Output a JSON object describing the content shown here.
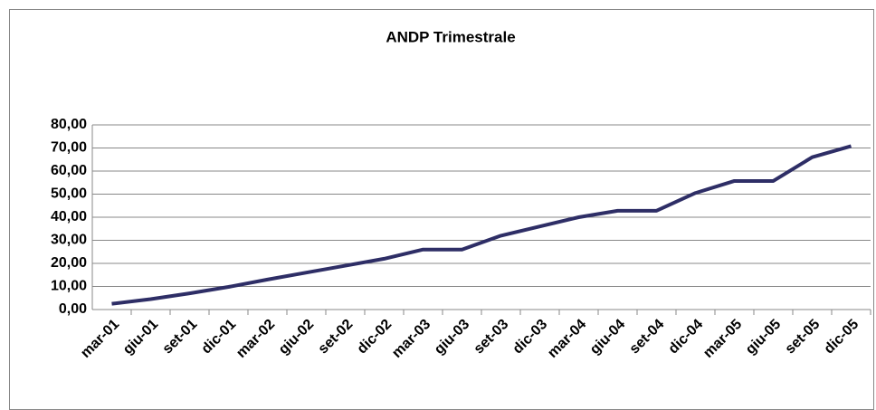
{
  "chart_data": {
    "type": "line",
    "title": "ANDP Trimestrale",
    "categories": [
      "mar-01",
      "giu-01",
      "set-01",
      "dic-01",
      "mar-02",
      "giu-02",
      "set-02",
      "dic-02",
      "mar-03",
      "giu-03",
      "set-03",
      "dic-03",
      "mar-04",
      "giu-04",
      "set-04",
      "dic-04",
      "mar-05",
      "giu-05",
      "set-05",
      "dic-05"
    ],
    "series": [
      {
        "name": "ANDP",
        "color": "#2e2e66",
        "values": [
          2.5,
          4.5,
          7,
          9.8,
          13,
          16,
          19,
          22,
          26,
          26,
          32,
          36,
          40,
          42.8,
          42.8,
          50.5,
          55.7,
          55.7,
          66,
          70.8
        ]
      }
    ],
    "ylim": [
      0,
      80
    ],
    "yticks": [
      {
        "value": 0,
        "label": "0,00"
      },
      {
        "value": 10,
        "label": "10,00"
      },
      {
        "value": 20,
        "label": "20,00"
      },
      {
        "value": 30,
        "label": "30,00"
      },
      {
        "value": 40,
        "label": "40,00"
      },
      {
        "value": 50,
        "label": "50,00"
      },
      {
        "value": 60,
        "label": "60,00"
      },
      {
        "value": 70,
        "label": "70,00"
      },
      {
        "value": 80,
        "label": "80,00"
      }
    ],
    "grid": true
  }
}
